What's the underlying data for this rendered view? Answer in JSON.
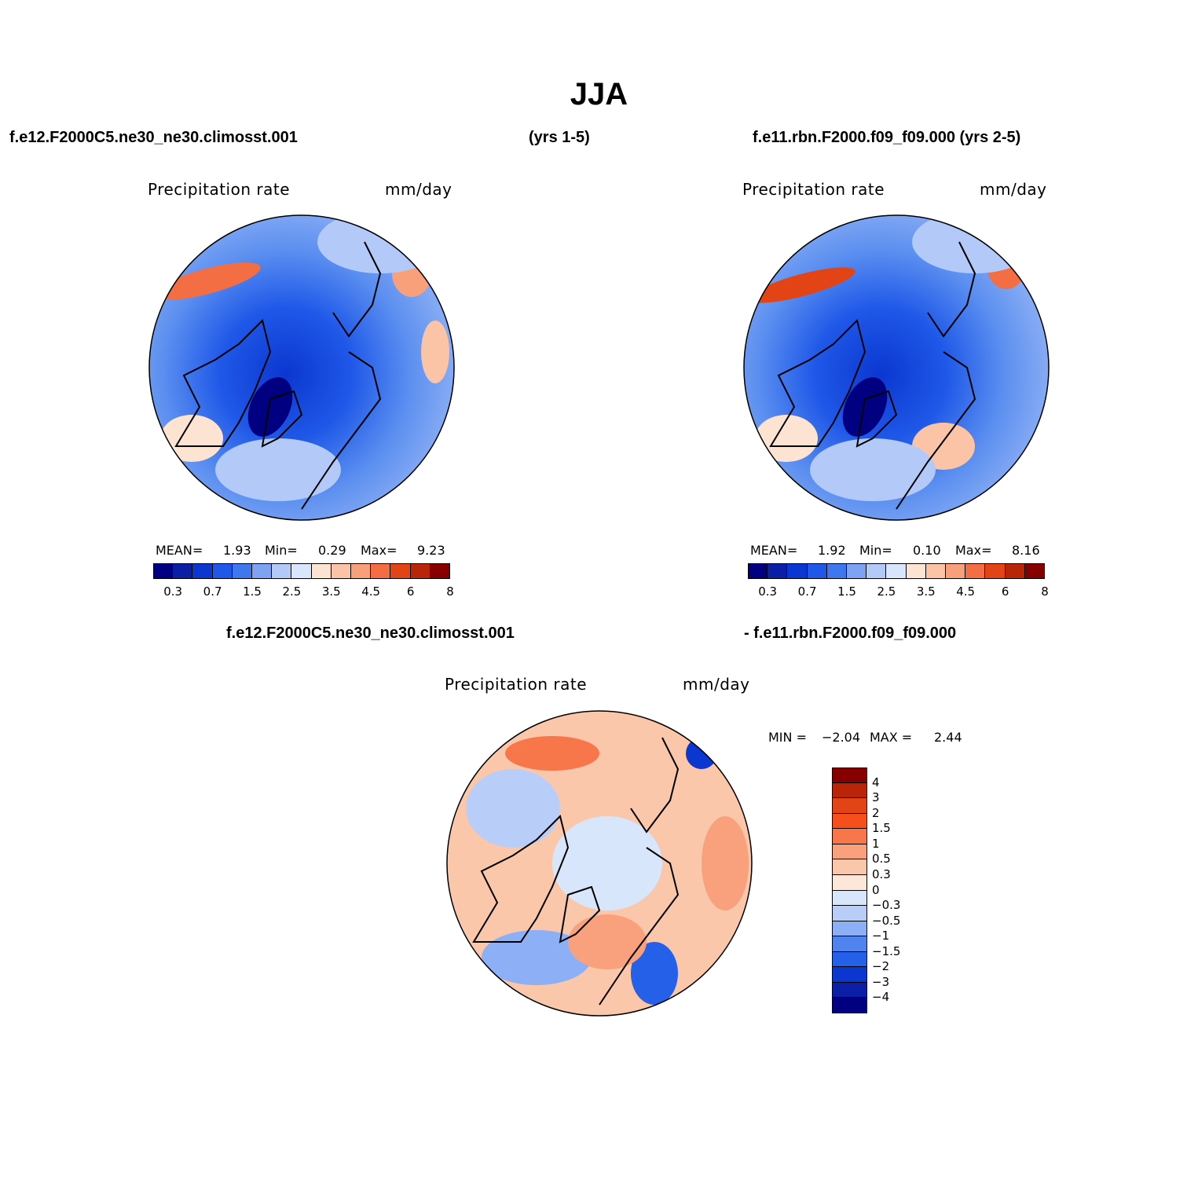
{
  "title": "JJA",
  "header": {
    "case1": "f.e12.F2000C5.ne30_ne30.climosst.001",
    "case1_years": "(yrs 1-5)",
    "case2": "f.e11.rbn.F2000.f09_f09.000 (yrs 2-5)"
  },
  "panels": [
    {
      "variable": "Precipitation  rate",
      "units": "mm/day",
      "mean_label": "MEAN=",
      "mean": "1.93",
      "min_label": "Min=",
      "min": "0.29",
      "max_label": "Max=",
      "max": "9.23"
    },
    {
      "variable": "Precipitation  rate",
      "units": "mm/day",
      "mean_label": "MEAN=",
      "mean": "1.92",
      "min_label": "Min=",
      "min": "0.10",
      "max_label": "Max=",
      "max": "8.16"
    }
  ],
  "abs_colorbar": {
    "tick_labels": [
      "0.3",
      "0.7",
      "1.5",
      "2.5",
      "3.5",
      "4.5",
      "6",
      "8"
    ],
    "colors": [
      "#000080",
      "#0a1fa6",
      "#0b37d0",
      "#1f58e8",
      "#3f78ee",
      "#7fa3f3",
      "#b3c9f7",
      "#d8e6fb",
      "#fde4d2",
      "#fbc4a6",
      "#f7a07a",
      "#f36f43",
      "#e24416",
      "#b82508",
      "#860000"
    ]
  },
  "diff": {
    "title_left": "f.e12.F2000C5.ne30_ne30.climosst.001",
    "title_right": "- f.e11.rbn.F2000.f09_f09.000",
    "variable": "Precipitation  rate",
    "units": "mm/day",
    "min_label": "MIN =",
    "min": "−2.04",
    "max_label": "MAX =",
    "max": "2.44",
    "colorbar": {
      "tick_labels": [
        "4",
        "3",
        "2",
        "1.5",
        "1",
        "0.5",
        "0.3",
        "0",
        "−0.3",
        "−0.5",
        "−1",
        "−1.5",
        "−2",
        "−3",
        "−4"
      ],
      "colors": [
        "#860000",
        "#b82508",
        "#e24416",
        "#f74f1c",
        "#f7764a",
        "#f9a07c",
        "#fbc7aa",
        "#fde7d8",
        "#d8e6fb",
        "#b8cef8",
        "#8cafF5",
        "#4f84ee",
        "#2460e8",
        "#0b37d0",
        "#0a1fa6",
        "#000080"
      ]
    }
  }
}
